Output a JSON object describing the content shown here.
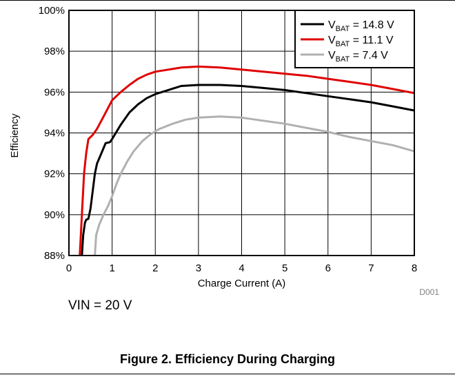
{
  "chart_data": {
    "type": "line",
    "title": "",
    "xlabel": "Charge Current (A)",
    "ylabel": "Efficiency",
    "xlim": [
      0,
      8
    ],
    "ylim": [
      88,
      100
    ],
    "x_ticks": [
      "0",
      "1",
      "2",
      "3",
      "4",
      "5",
      "6",
      "7",
      "8"
    ],
    "y_ticks": [
      "88%",
      "90%",
      "92%",
      "94%",
      "96%",
      "98%",
      "100%"
    ],
    "grid": true,
    "legend_position": "top-right",
    "series": [
      {
        "name": "VBAT = 14.8 V",
        "label_main": "V",
        "label_sub": "BAT",
        "label_rest": " = 14.8 V",
        "color": "#000000",
        "points": [
          [
            0.3,
            88.0
          ],
          [
            0.33,
            89.0
          ],
          [
            0.37,
            89.6
          ],
          [
            0.4,
            89.75
          ],
          [
            0.45,
            89.8
          ],
          [
            0.5,
            90.3
          ],
          [
            0.6,
            92.0
          ],
          [
            0.65,
            92.5
          ],
          [
            0.75,
            93.0
          ],
          [
            0.85,
            93.5
          ],
          [
            0.95,
            93.55
          ],
          [
            1.0,
            93.7
          ],
          [
            1.2,
            94.4
          ],
          [
            1.4,
            95.0
          ],
          [
            1.6,
            95.4
          ],
          [
            1.8,
            95.7
          ],
          [
            2.0,
            95.9
          ],
          [
            2.3,
            96.1
          ],
          [
            2.6,
            96.3
          ],
          [
            3.0,
            96.35
          ],
          [
            3.5,
            96.35
          ],
          [
            4.0,
            96.3
          ],
          [
            4.5,
            96.2
          ],
          [
            5.0,
            96.1
          ],
          [
            5.5,
            95.95
          ],
          [
            6.0,
            95.8
          ],
          [
            6.5,
            95.65
          ],
          [
            7.0,
            95.5
          ],
          [
            7.5,
            95.3
          ],
          [
            8.0,
            95.1
          ]
        ]
      },
      {
        "name": "VBAT = 11.1 V",
        "label_main": "V",
        "label_sub": "BAT",
        "label_rest": " = 11.1 V",
        "color": "#e00000",
        "points": [
          [
            0.25,
            88.0
          ],
          [
            0.3,
            90.0
          ],
          [
            0.35,
            92.0
          ],
          [
            0.4,
            93.0
          ],
          [
            0.45,
            93.7
          ],
          [
            0.55,
            93.9
          ],
          [
            0.65,
            94.2
          ],
          [
            0.75,
            94.6
          ],
          [
            0.9,
            95.2
          ],
          [
            1.0,
            95.6
          ],
          [
            1.2,
            96.0
          ],
          [
            1.4,
            96.35
          ],
          [
            1.6,
            96.65
          ],
          [
            1.8,
            96.85
          ],
          [
            2.0,
            97.0
          ],
          [
            2.3,
            97.1
          ],
          [
            2.6,
            97.2
          ],
          [
            3.0,
            97.25
          ],
          [
            3.5,
            97.2
          ],
          [
            4.0,
            97.1
          ],
          [
            4.5,
            97.0
          ],
          [
            5.0,
            96.9
          ],
          [
            5.5,
            96.8
          ],
          [
            6.0,
            96.65
          ],
          [
            6.5,
            96.5
          ],
          [
            7.0,
            96.35
          ],
          [
            7.5,
            96.15
          ],
          [
            8.0,
            95.95
          ]
        ]
      },
      {
        "name": "VBAT = 7.4 V",
        "label_main": "V",
        "label_sub": "BAT",
        "label_rest": " = 7.4 V",
        "color": "#b0b0b0",
        "points": [
          [
            0.6,
            88.0
          ],
          [
            0.63,
            89.0
          ],
          [
            0.7,
            89.5
          ],
          [
            0.8,
            90.0
          ],
          [
            0.9,
            90.4
          ],
          [
            1.0,
            90.9
          ],
          [
            1.1,
            91.5
          ],
          [
            1.2,
            92.0
          ],
          [
            1.35,
            92.6
          ],
          [
            1.5,
            93.1
          ],
          [
            1.7,
            93.6
          ],
          [
            1.9,
            93.95
          ],
          [
            2.1,
            94.2
          ],
          [
            2.4,
            94.45
          ],
          [
            2.7,
            94.65
          ],
          [
            3.0,
            94.75
          ],
          [
            3.5,
            94.8
          ],
          [
            4.0,
            94.75
          ],
          [
            4.5,
            94.6
          ],
          [
            5.0,
            94.45
          ],
          [
            5.5,
            94.25
          ],
          [
            6.0,
            94.05
          ],
          [
            6.5,
            93.8
          ],
          [
            7.0,
            93.6
          ],
          [
            7.5,
            93.4
          ],
          [
            8.0,
            93.1
          ]
        ]
      }
    ],
    "figure_code": "D001"
  },
  "note": "VIN = 20 V",
  "caption": "Figure 2. Efficiency During Charging"
}
